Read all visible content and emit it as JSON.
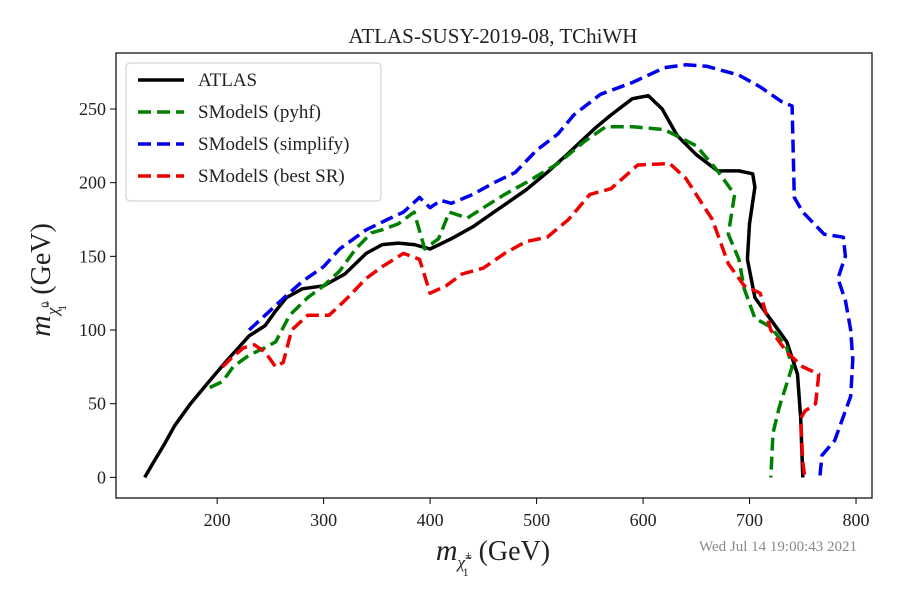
{
  "chart_data": {
    "type": "line",
    "title": "ATLAS-SUSY-2019-08, TChiWH",
    "xlabel": {
      "main": "m",
      "sub": "χ̃",
      "sub_sup": "±",
      "sub_sub": "1",
      "unit": "(GeV)"
    },
    "ylabel": {
      "main": "m",
      "sub": "χ̃",
      "sub_sup": "0",
      "sub_sub": "1",
      "unit": "(GeV)"
    },
    "xlim": [
      105,
      815
    ],
    "ylim": [
      -14,
      288
    ],
    "xticks": [
      200,
      300,
      400,
      500,
      600,
      700,
      800
    ],
    "yticks": [
      0,
      50,
      100,
      150,
      200,
      250
    ],
    "grid": false,
    "legend_position": "top-left",
    "timestamp": "Wed Jul 14 19:00:43 2021",
    "series": [
      {
        "name": "ATLAS",
        "color": "#000000",
        "dashed": false,
        "points": [
          [
            132,
            0
          ],
          [
            140,
            10
          ],
          [
            150,
            22
          ],
          [
            160,
            35
          ],
          [
            175,
            50
          ],
          [
            190,
            63
          ],
          [
            210,
            80
          ],
          [
            230,
            96
          ],
          [
            245,
            103
          ],
          [
            255,
            113
          ],
          [
            265,
            122
          ],
          [
            280,
            128
          ],
          [
            300,
            130
          ],
          [
            320,
            138
          ],
          [
            340,
            152
          ],
          [
            355,
            158
          ],
          [
            370,
            159
          ],
          [
            385,
            158
          ],
          [
            400,
            155
          ],
          [
            420,
            162
          ],
          [
            440,
            170
          ],
          [
            460,
            180
          ],
          [
            490,
            195
          ],
          [
            510,
            207
          ],
          [
            530,
            220
          ],
          [
            555,
            237
          ],
          [
            570,
            246
          ],
          [
            590,
            257
          ],
          [
            605,
            259
          ],
          [
            618,
            250
          ],
          [
            632,
            232
          ],
          [
            650,
            219
          ],
          [
            670,
            208
          ],
          [
            690,
            208
          ],
          [
            703,
            206
          ],
          [
            705,
            197
          ],
          [
            700,
            172
          ],
          [
            698,
            148
          ],
          [
            705,
            122
          ],
          [
            720,
            107
          ],
          [
            735,
            92
          ],
          [
            745,
            70
          ],
          [
            748,
            40
          ],
          [
            750,
            0
          ]
        ]
      },
      {
        "name": "SModelS (pyhf)",
        "color": "#008000",
        "dashed": true,
        "points": [
          [
            193,
            61
          ],
          [
            205,
            65
          ],
          [
            215,
            75
          ],
          [
            230,
            83
          ],
          [
            245,
            88
          ],
          [
            255,
            92
          ],
          [
            268,
            110
          ],
          [
            285,
            122
          ],
          [
            300,
            130
          ],
          [
            315,
            140
          ],
          [
            330,
            155
          ],
          [
            345,
            166
          ],
          [
            355,
            168
          ],
          [
            370,
            172
          ],
          [
            385,
            180
          ],
          [
            395,
            155
          ],
          [
            408,
            162
          ],
          [
            418,
            180
          ],
          [
            435,
            176
          ],
          [
            450,
            183
          ],
          [
            470,
            192
          ],
          [
            490,
            200
          ],
          [
            520,
            213
          ],
          [
            545,
            228
          ],
          [
            565,
            238
          ],
          [
            590,
            238
          ],
          [
            620,
            236
          ],
          [
            650,
            225
          ],
          [
            670,
            208
          ],
          [
            686,
            192
          ],
          [
            680,
            165
          ],
          [
            690,
            148
          ],
          [
            695,
            128
          ],
          [
            705,
            108
          ],
          [
            720,
            102
          ],
          [
            735,
            88
          ],
          [
            740,
            75
          ],
          [
            728,
            48
          ],
          [
            722,
            30
          ],
          [
            720,
            0
          ]
        ]
      },
      {
        "name": "SModelS (simplify)",
        "color": "#0000ee",
        "dashed": true,
        "points": [
          [
            230,
            100
          ],
          [
            245,
            110
          ],
          [
            260,
            120
          ],
          [
            280,
            133
          ],
          [
            300,
            143
          ],
          [
            315,
            155
          ],
          [
            340,
            168
          ],
          [
            360,
            175
          ],
          [
            375,
            180
          ],
          [
            390,
            190
          ],
          [
            400,
            183
          ],
          [
            410,
            188
          ],
          [
            420,
            186
          ],
          [
            440,
            192
          ],
          [
            460,
            200
          ],
          [
            480,
            207
          ],
          [
            500,
            222
          ],
          [
            520,
            233
          ],
          [
            535,
            246
          ],
          [
            560,
            260
          ],
          [
            590,
            268
          ],
          [
            620,
            278
          ],
          [
            640,
            280
          ],
          [
            660,
            279
          ],
          [
            690,
            273
          ],
          [
            710,
            265
          ],
          [
            730,
            255
          ],
          [
            740,
            252
          ],
          [
            742,
            190
          ],
          [
            750,
            180
          ],
          [
            770,
            165
          ],
          [
            788,
            163
          ],
          [
            790,
            150
          ],
          [
            783,
            135
          ],
          [
            790,
            120
          ],
          [
            795,
            100
          ],
          [
            797,
            80
          ],
          [
            795,
            55
          ],
          [
            780,
            25
          ],
          [
            768,
            15
          ],
          [
            766,
            0
          ]
        ]
      },
      {
        "name": "SModelS (best SR)",
        "color": "#ee0000",
        "dashed": true,
        "points": [
          [
            205,
            75
          ],
          [
            215,
            82
          ],
          [
            225,
            88
          ],
          [
            235,
            90
          ],
          [
            245,
            85
          ],
          [
            255,
            75
          ],
          [
            262,
            78
          ],
          [
            270,
            100
          ],
          [
            285,
            110
          ],
          [
            305,
            110
          ],
          [
            320,
            120
          ],
          [
            340,
            135
          ],
          [
            355,
            143
          ],
          [
            375,
            152
          ],
          [
            390,
            148
          ],
          [
            400,
            125
          ],
          [
            415,
            130
          ],
          [
            430,
            138
          ],
          [
            450,
            142
          ],
          [
            470,
            152
          ],
          [
            490,
            160
          ],
          [
            510,
            163
          ],
          [
            530,
            175
          ],
          [
            550,
            192
          ],
          [
            570,
            196
          ],
          [
            595,
            212
          ],
          [
            625,
            213
          ],
          [
            640,
            203
          ],
          [
            665,
            175
          ],
          [
            680,
            145
          ],
          [
            695,
            130
          ],
          [
            710,
            125
          ],
          [
            720,
            100
          ],
          [
            735,
            85
          ],
          [
            750,
            75
          ],
          [
            765,
            70
          ],
          [
            762,
            50
          ],
          [
            752,
            45
          ],
          [
            748,
            40
          ],
          [
            750,
            10
          ],
          [
            752,
            0
          ]
        ]
      }
    ]
  }
}
